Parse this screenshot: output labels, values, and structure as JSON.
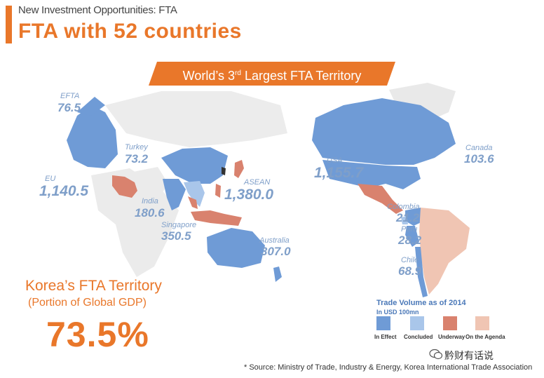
{
  "header": {
    "subtitle": "New Investment Opportunities: FTA",
    "title": "FTA with 52 countries"
  },
  "banner": {
    "text_before": "World’s 3",
    "superscript": "rd",
    "text_after": " Largest FTA Territory"
  },
  "regions": {
    "efta": {
      "name": "EFTA",
      "value": "76.5"
    },
    "eu": {
      "name": "EU",
      "value": "1,140.5"
    },
    "turkey": {
      "name": "Turkey",
      "value": "73.2"
    },
    "india": {
      "name": "India",
      "value": "180.6"
    },
    "singapore": {
      "name": "Singapore",
      "value": "350.5"
    },
    "asean": {
      "name": "ASEAN",
      "value": "1,380.0"
    },
    "australia": {
      "name": "Australia",
      "value": "307.0"
    },
    "usa": {
      "name": "USA",
      "value": "1,155.7"
    },
    "canada": {
      "name": "Canada",
      "value": "103.6"
    },
    "colombia": {
      "name": "Colombia",
      "value": "21.2"
    },
    "peru": {
      "name": "Peru",
      "value": "28.2"
    },
    "chile": {
      "name": "Chile",
      "value": "68.9"
    }
  },
  "korea": {
    "title": "Korea’s FTA Territory",
    "subtitle": "(Portion of Global GDP)",
    "percent": "73.5%"
  },
  "legend": {
    "title": "Trade Volume as of 2014",
    "unit": "In USD 100mn",
    "items": [
      {
        "label": "In Effect",
        "color": "#6f9bd6"
      },
      {
        "label": "Concluded",
        "color": "#a9c6ea"
      },
      {
        "label": "Underway",
        "color": "#d9826e"
      },
      {
        "label": "On the Agenda",
        "color": "#f0c5b3"
      }
    ]
  },
  "colors": {
    "accent": "#e9772a",
    "in_effect": "#6f9bd6",
    "concluded": "#a9c6ea",
    "underway": "#d9826e",
    "agenda": "#f0c5b3",
    "land": "#e9e9e9",
    "label": "#7f9fc9"
  },
  "watermark": "黔财有话说",
  "source": "* Source: Ministry of Trade, Industry & Energy, Korea International Trade Association"
}
